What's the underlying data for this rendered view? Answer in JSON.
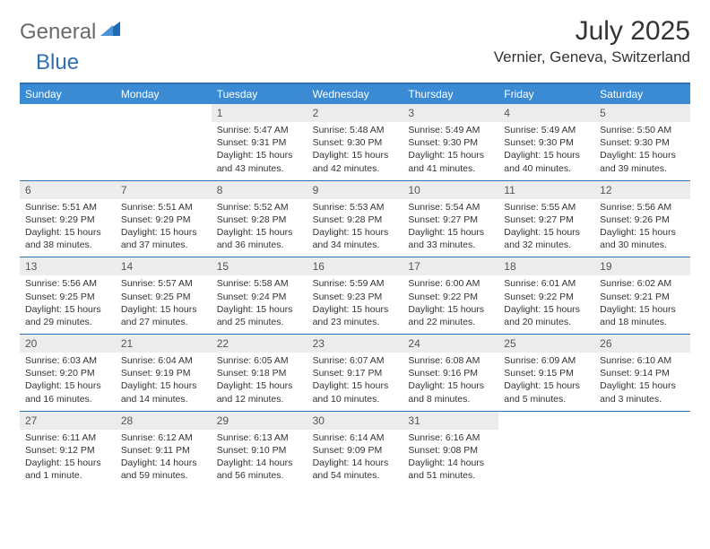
{
  "logo": {
    "text1": "General",
    "text2": "Blue",
    "icon_color": "#1f6bb5"
  },
  "title": "July 2025",
  "location": "Vernier, Geneva, Switzerland",
  "colors": {
    "header_bar": "#3b8bd4",
    "border": "#2f6fb3",
    "daynum_bg": "#ececec",
    "text": "#333333",
    "logo_gray": "#6a6a6a",
    "logo_blue": "#2f6fb3"
  },
  "fonts": {
    "title_size": 30,
    "location_size": 17,
    "header_size": 12,
    "daynum_size": 12,
    "body_size": 10.5
  },
  "day_names": [
    "Sunday",
    "Monday",
    "Tuesday",
    "Wednesday",
    "Thursday",
    "Friday",
    "Saturday"
  ],
  "weeks": [
    [
      {
        "n": "",
        "sr": "",
        "ss": "",
        "dl": ""
      },
      {
        "n": "",
        "sr": "",
        "ss": "",
        "dl": ""
      },
      {
        "n": "1",
        "sr": "Sunrise: 5:47 AM",
        "ss": "Sunset: 9:31 PM",
        "dl": "Daylight: 15 hours and 43 minutes."
      },
      {
        "n": "2",
        "sr": "Sunrise: 5:48 AM",
        "ss": "Sunset: 9:30 PM",
        "dl": "Daylight: 15 hours and 42 minutes."
      },
      {
        "n": "3",
        "sr": "Sunrise: 5:49 AM",
        "ss": "Sunset: 9:30 PM",
        "dl": "Daylight: 15 hours and 41 minutes."
      },
      {
        "n": "4",
        "sr": "Sunrise: 5:49 AM",
        "ss": "Sunset: 9:30 PM",
        "dl": "Daylight: 15 hours and 40 minutes."
      },
      {
        "n": "5",
        "sr": "Sunrise: 5:50 AM",
        "ss": "Sunset: 9:30 PM",
        "dl": "Daylight: 15 hours and 39 minutes."
      }
    ],
    [
      {
        "n": "6",
        "sr": "Sunrise: 5:51 AM",
        "ss": "Sunset: 9:29 PM",
        "dl": "Daylight: 15 hours and 38 minutes."
      },
      {
        "n": "7",
        "sr": "Sunrise: 5:51 AM",
        "ss": "Sunset: 9:29 PM",
        "dl": "Daylight: 15 hours and 37 minutes."
      },
      {
        "n": "8",
        "sr": "Sunrise: 5:52 AM",
        "ss": "Sunset: 9:28 PM",
        "dl": "Daylight: 15 hours and 36 minutes."
      },
      {
        "n": "9",
        "sr": "Sunrise: 5:53 AM",
        "ss": "Sunset: 9:28 PM",
        "dl": "Daylight: 15 hours and 34 minutes."
      },
      {
        "n": "10",
        "sr": "Sunrise: 5:54 AM",
        "ss": "Sunset: 9:27 PM",
        "dl": "Daylight: 15 hours and 33 minutes."
      },
      {
        "n": "11",
        "sr": "Sunrise: 5:55 AM",
        "ss": "Sunset: 9:27 PM",
        "dl": "Daylight: 15 hours and 32 minutes."
      },
      {
        "n": "12",
        "sr": "Sunrise: 5:56 AM",
        "ss": "Sunset: 9:26 PM",
        "dl": "Daylight: 15 hours and 30 minutes."
      }
    ],
    [
      {
        "n": "13",
        "sr": "Sunrise: 5:56 AM",
        "ss": "Sunset: 9:25 PM",
        "dl": "Daylight: 15 hours and 29 minutes."
      },
      {
        "n": "14",
        "sr": "Sunrise: 5:57 AM",
        "ss": "Sunset: 9:25 PM",
        "dl": "Daylight: 15 hours and 27 minutes."
      },
      {
        "n": "15",
        "sr": "Sunrise: 5:58 AM",
        "ss": "Sunset: 9:24 PM",
        "dl": "Daylight: 15 hours and 25 minutes."
      },
      {
        "n": "16",
        "sr": "Sunrise: 5:59 AM",
        "ss": "Sunset: 9:23 PM",
        "dl": "Daylight: 15 hours and 23 minutes."
      },
      {
        "n": "17",
        "sr": "Sunrise: 6:00 AM",
        "ss": "Sunset: 9:22 PM",
        "dl": "Daylight: 15 hours and 22 minutes."
      },
      {
        "n": "18",
        "sr": "Sunrise: 6:01 AM",
        "ss": "Sunset: 9:22 PM",
        "dl": "Daylight: 15 hours and 20 minutes."
      },
      {
        "n": "19",
        "sr": "Sunrise: 6:02 AM",
        "ss": "Sunset: 9:21 PM",
        "dl": "Daylight: 15 hours and 18 minutes."
      }
    ],
    [
      {
        "n": "20",
        "sr": "Sunrise: 6:03 AM",
        "ss": "Sunset: 9:20 PM",
        "dl": "Daylight: 15 hours and 16 minutes."
      },
      {
        "n": "21",
        "sr": "Sunrise: 6:04 AM",
        "ss": "Sunset: 9:19 PM",
        "dl": "Daylight: 15 hours and 14 minutes."
      },
      {
        "n": "22",
        "sr": "Sunrise: 6:05 AM",
        "ss": "Sunset: 9:18 PM",
        "dl": "Daylight: 15 hours and 12 minutes."
      },
      {
        "n": "23",
        "sr": "Sunrise: 6:07 AM",
        "ss": "Sunset: 9:17 PM",
        "dl": "Daylight: 15 hours and 10 minutes."
      },
      {
        "n": "24",
        "sr": "Sunrise: 6:08 AM",
        "ss": "Sunset: 9:16 PM",
        "dl": "Daylight: 15 hours and 8 minutes."
      },
      {
        "n": "25",
        "sr": "Sunrise: 6:09 AM",
        "ss": "Sunset: 9:15 PM",
        "dl": "Daylight: 15 hours and 5 minutes."
      },
      {
        "n": "26",
        "sr": "Sunrise: 6:10 AM",
        "ss": "Sunset: 9:14 PM",
        "dl": "Daylight: 15 hours and 3 minutes."
      }
    ],
    [
      {
        "n": "27",
        "sr": "Sunrise: 6:11 AM",
        "ss": "Sunset: 9:12 PM",
        "dl": "Daylight: 15 hours and 1 minute."
      },
      {
        "n": "28",
        "sr": "Sunrise: 6:12 AM",
        "ss": "Sunset: 9:11 PM",
        "dl": "Daylight: 14 hours and 59 minutes."
      },
      {
        "n": "29",
        "sr": "Sunrise: 6:13 AM",
        "ss": "Sunset: 9:10 PM",
        "dl": "Daylight: 14 hours and 56 minutes."
      },
      {
        "n": "30",
        "sr": "Sunrise: 6:14 AM",
        "ss": "Sunset: 9:09 PM",
        "dl": "Daylight: 14 hours and 54 minutes."
      },
      {
        "n": "31",
        "sr": "Sunrise: 6:16 AM",
        "ss": "Sunset: 9:08 PM",
        "dl": "Daylight: 14 hours and 51 minutes."
      },
      {
        "n": "",
        "sr": "",
        "ss": "",
        "dl": ""
      },
      {
        "n": "",
        "sr": "",
        "ss": "",
        "dl": ""
      }
    ]
  ]
}
